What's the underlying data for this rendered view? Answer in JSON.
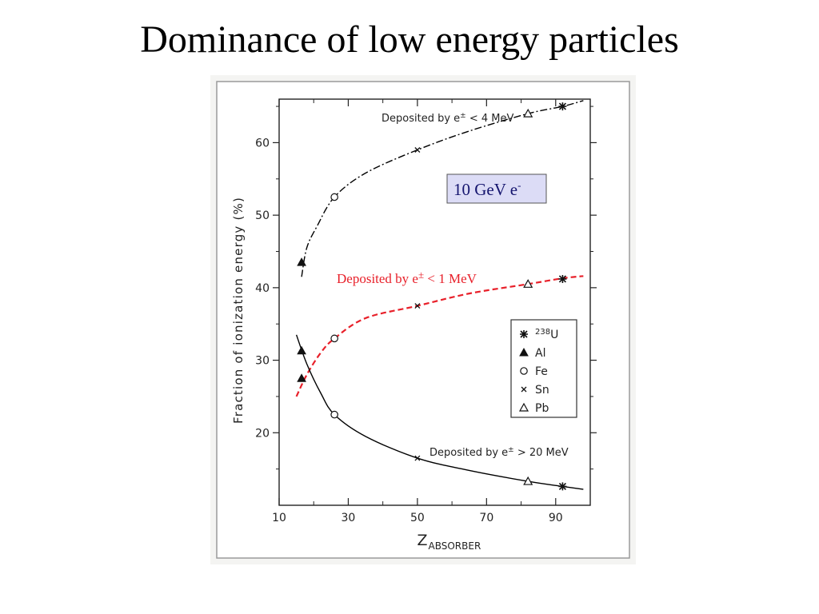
{
  "slide": {
    "title": "Dominance of low energy particles"
  },
  "colors": {
    "curve": "#000000",
    "highlight": "#e8202a",
    "box_fill": "#dcdcf6",
    "box_border": "#555555",
    "paper": "#f4f4f2"
  },
  "chart_data": {
    "type": "line",
    "xlabel_main": "Z",
    "xlabel_sub": "ABSORBER",
    "ylabel": "Fraction of ionization energy (%)",
    "xlim": [
      10,
      100
    ],
    "ylim": [
      10,
      66
    ],
    "x_ticks": [
      10,
      30,
      50,
      70,
      90
    ],
    "y_ticks": [
      20,
      30,
      40,
      50,
      60
    ],
    "x_minor_ticks": [
      20,
      40,
      60,
      80
    ],
    "y_minor_ticks": [
      15,
      25,
      35,
      45,
      55,
      65
    ],
    "annotation_box": "10 GeV e",
    "annotation_box_sup": "-",
    "series": [
      {
        "name": "Deposited by e± < 4 MeV",
        "label_main": "Deposited by e",
        "label_sup": "±",
        "label_rest": " < 4 MeV",
        "style": "dashdot",
        "color": "#000000",
        "curve": [
          [
            16.5,
            41.5
          ],
          [
            18,
            45.5
          ],
          [
            21,
            48.5
          ],
          [
            26,
            52.5
          ],
          [
            35,
            55.8
          ],
          [
            50,
            59
          ],
          [
            65,
            61.6
          ],
          [
            82,
            64
          ],
          [
            92,
            65
          ],
          [
            98,
            65.8
          ]
        ],
        "points": [
          {
            "x": 16.5,
            "y": 43.5,
            "marker": "filled-triangle"
          },
          {
            "x": 26,
            "y": 52.5,
            "marker": "circle"
          },
          {
            "x": 50,
            "y": 59,
            "marker": "cross"
          },
          {
            "x": 82,
            "y": 64,
            "marker": "triangle"
          },
          {
            "x": 92,
            "y": 65,
            "marker": "star"
          }
        ]
      },
      {
        "name": "Deposited by e± < 1 MeV",
        "label_main": "Deposited by e",
        "label_sup": "±",
        "label_rest": " < 1 MeV",
        "style": "dashed",
        "color": "#e8202a",
        "curve": [
          [
            15,
            25
          ],
          [
            18,
            28
          ],
          [
            22,
            31
          ],
          [
            26,
            33
          ],
          [
            35,
            35.8
          ],
          [
            50,
            37.5
          ],
          [
            65,
            39.2
          ],
          [
            82,
            40.5
          ],
          [
            92,
            41.3
          ],
          [
            98,
            41.6
          ]
        ],
        "points": [
          {
            "x": 16.5,
            "y": 27.5,
            "marker": "filled-triangle"
          },
          {
            "x": 26,
            "y": 33,
            "marker": "circle"
          },
          {
            "x": 50,
            "y": 37.5,
            "marker": "cross"
          },
          {
            "x": 82,
            "y": 40.5,
            "marker": "triangle"
          },
          {
            "x": 92,
            "y": 41.2,
            "marker": "star"
          }
        ]
      },
      {
        "name": "Deposited by e± > 20 MeV",
        "label_main": "Deposited by e",
        "label_sup": "±",
        "label_rest": " > 20 MeV",
        "style": "solid",
        "color": "#000000",
        "curve": [
          [
            15,
            33.5
          ],
          [
            18,
            29.5
          ],
          [
            22,
            25.5
          ],
          [
            26,
            22.5
          ],
          [
            35,
            19.5
          ],
          [
            50,
            16.5
          ],
          [
            65,
            14.8
          ],
          [
            82,
            13.3
          ],
          [
            92,
            12.6
          ],
          [
            98,
            12.2
          ]
        ],
        "points": [
          {
            "x": 16.5,
            "y": 31.3,
            "marker": "filled-triangle"
          },
          {
            "x": 26,
            "y": 22.5,
            "marker": "circle"
          },
          {
            "x": 50,
            "y": 16.5,
            "marker": "cross"
          },
          {
            "x": 82,
            "y": 13.3,
            "marker": "triangle"
          },
          {
            "x": 92,
            "y": 12.6,
            "marker": "star"
          }
        ]
      }
    ],
    "legend": {
      "placement": "right",
      "entries": [
        {
          "marker": "star",
          "label": "U",
          "sup": "238"
        },
        {
          "marker": "filled-triangle",
          "label": "Al"
        },
        {
          "marker": "circle",
          "label": "Fe"
        },
        {
          "marker": "cross",
          "label": "Sn"
        },
        {
          "marker": "triangle",
          "label": "Pb"
        }
      ]
    }
  }
}
